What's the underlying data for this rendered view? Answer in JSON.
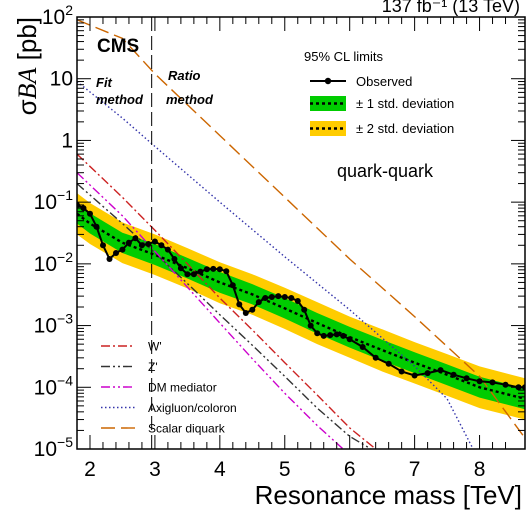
{
  "chart_data": {
    "type": "line",
    "experiment_label": "CMS",
    "lumi_label": "137 fb⁻¹ (13 TeV)",
    "xlabel": "Resonance mass [TeV]",
    "ylabel": "σBA [pb]",
    "ylabel_prefix": "σ",
    "ylabel_italic": "BA",
    "ylabel_suffix": " [pb]",
    "xlim": [
      1.8,
      8.7
    ],
    "ylim": [
      1e-05,
      100
    ],
    "yscale": "log",
    "x_ticks": [
      2,
      3,
      4,
      5,
      6,
      7,
      8
    ],
    "x_tick_labels": [
      "2",
      "3",
      "4",
      "5",
      "6",
      "7",
      "8"
    ],
    "y_ticks": [
      {
        "value": 100,
        "base": "10",
        "exp": "2"
      },
      {
        "value": 10,
        "base": "10",
        "exp": ""
      },
      {
        "value": 1,
        "base": "1",
        "exp": ""
      },
      {
        "value": 0.1,
        "base": "10",
        "exp": "−1"
      },
      {
        "value": 0.01,
        "base": "10",
        "exp": "−2"
      },
      {
        "value": 0.001,
        "base": "10",
        "exp": "−3"
      },
      {
        "value": 0.0001,
        "base": "10",
        "exp": "−4"
      },
      {
        "value": 1e-05,
        "base": "10",
        "exp": "−5"
      }
    ],
    "method_divider_x": 2.95,
    "method_labels": {
      "fit": "Fit method",
      "fit_line1": "Fit",
      "fit_line2": "method",
      "ratio": "Ratio method",
      "ratio_line1": "Ratio",
      "ratio_line2": "method"
    },
    "final_state": "quark-quark",
    "legend_title": "95% CL limits",
    "legend_entries": {
      "observed": "Observed",
      "band1": "± 1 std. deviation",
      "band2": "± 2 std. deviation"
    },
    "colors": {
      "band1": "#00cc00",
      "band2": "#ffcc00",
      "observed": "#000000",
      "expected": "#000000",
      "wprime": "#cc2222",
      "zprime": "#333333",
      "dm": "#cc00cc",
      "axigluon": "#3333aa",
      "diquark": "#cc6600"
    },
    "expected": {
      "x": [
        1.8,
        2.0,
        2.5,
        3.0,
        3.5,
        4.0,
        4.5,
        5.0,
        5.5,
        6.0,
        6.5,
        7.0,
        7.5,
        8.0,
        8.7
      ],
      "y": [
        0.065,
        0.045,
        0.022,
        0.014,
        0.0085,
        0.005,
        0.0032,
        0.0019,
        0.0011,
        0.00065,
        0.0004,
        0.00025,
        0.00016,
        0.0001,
        6.5e-05
      ]
    },
    "band1": {
      "x": [
        1.8,
        2.0,
        2.5,
        3.0,
        3.5,
        4.0,
        4.5,
        5.0,
        5.5,
        6.0,
        6.5,
        7.0,
        7.5,
        8.0,
        8.7
      ],
      "lo": [
        0.045,
        0.031,
        0.015,
        0.0096,
        0.0058,
        0.0034,
        0.0022,
        0.0013,
        0.00074,
        0.00044,
        0.00027,
        0.00017,
        0.000108,
        6.8e-05,
        4.4e-05
      ],
      "hi": [
        0.095,
        0.066,
        0.032,
        0.021,
        0.0125,
        0.0074,
        0.0047,
        0.0028,
        0.0016,
        0.00095,
        0.00059,
        0.00037,
        0.000235,
        0.000148,
        9.6e-05
      ]
    },
    "band2": {
      "x": [
        1.8,
        2.0,
        2.5,
        3.0,
        3.5,
        4.0,
        4.5,
        5.0,
        5.5,
        6.0,
        6.5,
        7.0,
        7.5,
        8.0,
        8.7
      ],
      "lo": [
        0.03,
        0.021,
        0.0103,
        0.0066,
        0.004,
        0.0023,
        0.0015,
        0.00088,
        0.0005,
        0.0003,
        0.00018,
        0.000115,
        7.3e-05,
        4.6e-05,
        3e-05
      ],
      "hi": [
        0.14,
        0.097,
        0.047,
        0.03,
        0.018,
        0.0106,
        0.0068,
        0.0041,
        0.0024,
        0.0014,
        0.00087,
        0.00054,
        0.000345,
        0.000218,
        0.00014
      ]
    },
    "observed": {
      "x": [
        1.8,
        1.9,
        2.0,
        2.1,
        2.2,
        2.3,
        2.4,
        2.5,
        2.6,
        2.7,
        2.8,
        2.9,
        3.0,
        3.1,
        3.2,
        3.3,
        3.4,
        3.5,
        3.6,
        3.7,
        3.8,
        3.9,
        4.0,
        4.1,
        4.2,
        4.3,
        4.4,
        4.5,
        4.6,
        4.7,
        4.8,
        4.9,
        5.0,
        5.1,
        5.2,
        5.3,
        5.4,
        5.5,
        5.6,
        5.7,
        5.8,
        5.9,
        6.0,
        6.2,
        6.4,
        6.6,
        6.8,
        7.0,
        7.2,
        7.4,
        7.6,
        7.8,
        8.0,
        8.2,
        8.4,
        8.6,
        8.7
      ],
      "y": [
        0.09,
        0.08,
        0.065,
        0.04,
        0.02,
        0.012,
        0.015,
        0.017,
        0.022,
        0.026,
        0.02,
        0.021,
        0.023,
        0.02,
        0.017,
        0.012,
        0.0085,
        0.0068,
        0.0068,
        0.0075,
        0.0082,
        0.0083,
        0.0082,
        0.0076,
        0.0045,
        0.0022,
        0.0016,
        0.0018,
        0.0024,
        0.0028,
        0.0029,
        0.003,
        0.0029,
        0.0028,
        0.0025,
        0.0018,
        0.001,
        0.00075,
        0.00068,
        0.0007,
        0.00072,
        0.00068,
        0.0006,
        0.00045,
        0.0003,
        0.00024,
        0.00018,
        0.000155,
        0.00017,
        0.00019,
        0.00016,
        0.00014,
        0.000125,
        0.00012,
        0.00011,
        0.0001,
        0.0001
      ]
    },
    "theory_legend_title": "",
    "theory": [
      {
        "name": "W'",
        "style": "dashdot",
        "color": "#cc2222",
        "x": [
          1.8,
          2.5,
          3.0,
          3.5,
          4.0,
          4.5,
          5.0,
          5.5,
          6.0,
          6.4
        ],
        "y": [
          0.6,
          0.12,
          0.035,
          0.01,
          0.0028,
          0.00085,
          0.00025,
          7.5e-05,
          2.2e-05,
          1e-05
        ]
      },
      {
        "name": "Z'",
        "style": "dashdotdot",
        "color": "#333333",
        "x": [
          1.8,
          2.5,
          3.0,
          3.5,
          4.0,
          4.5,
          5.0,
          5.5,
          6.0,
          6.4
        ],
        "y": [
          0.2,
          0.045,
          0.015,
          0.0048,
          0.0015,
          0.00048,
          0.00015,
          4.6e-05,
          1.6e-05,
          9e-06
        ]
      },
      {
        "name": "DM mediator",
        "style": "dashdotdot",
        "color": "#cc00cc",
        "x": [
          1.8,
          2.5,
          3.0,
          3.5,
          4.0,
          4.5,
          5.0,
          5.5,
          6.0
        ],
        "y": [
          0.3,
          0.06,
          0.016,
          0.0042,
          0.0011,
          0.00029,
          8e-05,
          2.4e-05,
          8e-06
        ]
      },
      {
        "name": "Axigluon/coloron",
        "style": "dotted",
        "color": "#3333aa",
        "x": [
          1.8,
          2.5,
          3.0,
          4.0,
          5.0,
          6.0,
          7.0,
          7.5,
          7.9
        ],
        "y": [
          9.0,
          2.3,
          0.8,
          0.1,
          0.013,
          0.0018,
          0.00022,
          6.5e-05,
          1e-05
        ]
      },
      {
        "name": "Scalar diquark",
        "style": "longdash",
        "color": "#cc6600",
        "x": [
          1.8,
          2.5,
          3.0,
          4.0,
          5.0,
          6.0,
          7.0,
          8.0,
          8.7
        ],
        "y": [
          90,
          45,
          12,
          1.2,
          0.12,
          0.012,
          0.0014,
          0.00015,
          1.5e-05
        ]
      }
    ]
  }
}
